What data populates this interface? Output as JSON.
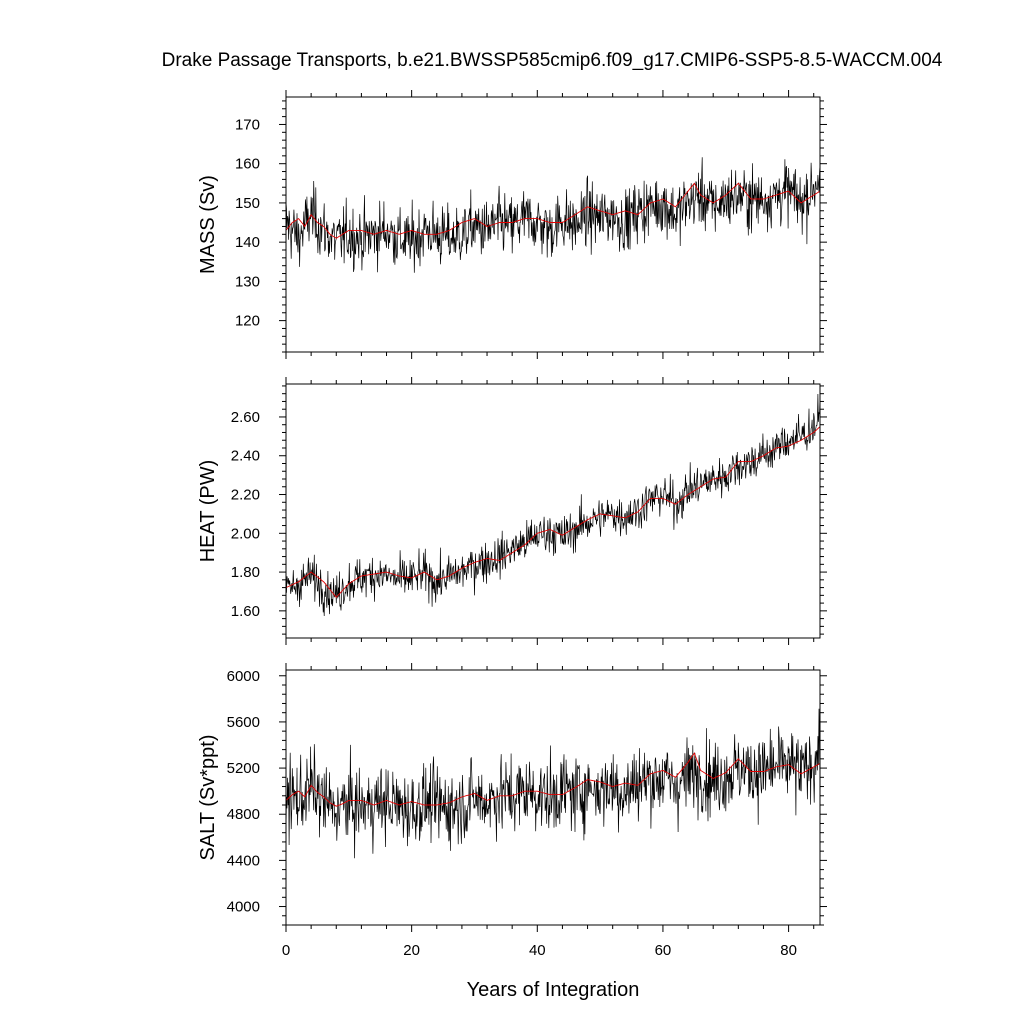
{
  "figure": {
    "title": "Drake Passage Transports, b.e21.BWSSP585cmip6.f09_g17.CMIP6-SSP5-8.5-WACCM.004",
    "xlabel": "Years of Integration"
  },
  "chart_data": [
    {
      "type": "line",
      "title": "",
      "ylabel": "MASS (Sv)",
      "xlabel": "",
      "xlim": [
        0,
        85
      ],
      "ylim": [
        112,
        177
      ],
      "yticks": [
        120,
        130,
        140,
        150,
        160,
        170
      ],
      "ytick_labels": [
        "120",
        "130",
        "140",
        "150",
        "160",
        "170"
      ],
      "xticks": [
        0,
        20,
        40,
        60,
        80
      ],
      "xtick_labels": [],
      "series": [
        {
          "color": "#000000",
          "kind": "monthly",
          "x": [
            0,
            2,
            4,
            6,
            8,
            10,
            12,
            14,
            16,
            18,
            20,
            22,
            24,
            26,
            28,
            30,
            32,
            34,
            36,
            38,
            40,
            42,
            44,
            46,
            48,
            50,
            52,
            54,
            56,
            58,
            60,
            62,
            64,
            66,
            68,
            70,
            72,
            74,
            76,
            78,
            80,
            82,
            84,
            85
          ],
          "values": [
            145,
            141,
            147,
            143,
            140,
            142,
            141,
            142,
            143,
            141,
            140,
            143,
            142,
            141,
            142,
            144,
            143,
            145,
            144,
            146,
            145,
            143,
            146,
            144,
            147,
            146,
            147,
            145,
            148,
            149,
            150,
            147,
            150,
            152,
            149,
            151,
            152,
            151,
            151,
            152,
            153,
            150,
            154,
            158
          ]
        },
        {
          "color": "#e00000",
          "kind": "running mean",
          "x": [
            0,
            1,
            2,
            3,
            4,
            5,
            6,
            7,
            8,
            9,
            10,
            12,
            14,
            16,
            18,
            20,
            22,
            24,
            26,
            28,
            30,
            32,
            34,
            36,
            38,
            40,
            42,
            44,
            46,
            48,
            50,
            52,
            54,
            56,
            58,
            60,
            62,
            64,
            65,
            66,
            68,
            70,
            72,
            74,
            76,
            78,
            80,
            82,
            84,
            85
          ],
          "values": [
            143,
            145,
            146,
            144,
            147,
            145,
            144,
            142,
            141,
            142,
            143,
            143,
            142,
            143,
            142,
            143,
            142,
            142,
            143,
            145,
            146,
            144,
            145,
            145,
            146,
            146,
            145,
            145,
            147,
            149,
            148,
            147,
            148,
            147,
            150,
            151,
            149,
            153,
            155,
            152,
            150,
            152,
            155,
            151,
            151,
            152,
            153,
            150,
            152,
            153
          ]
        }
      ]
    },
    {
      "type": "line",
      "title": "",
      "ylabel": "HEAT (PW)",
      "xlabel": "",
      "xlim": [
        0,
        85
      ],
      "ylim": [
        1.46,
        2.77
      ],
      "yticks": [
        1.6,
        1.8,
        2.0,
        2.2,
        2.4,
        2.6
      ],
      "ytick_labels": [
        "1.60",
        "1.80",
        "2.00",
        "2.20",
        "2.40",
        "2.60"
      ],
      "xticks": [
        0,
        20,
        40,
        60,
        80
      ],
      "xtick_labels": [],
      "series": [
        {
          "color": "#000000",
          "kind": "monthly",
          "x": [
            0,
            2,
            4,
            6,
            8,
            10,
            12,
            14,
            16,
            18,
            20,
            22,
            24,
            26,
            28,
            30,
            32,
            34,
            36,
            38,
            40,
            42,
            44,
            46,
            48,
            50,
            52,
            54,
            56,
            58,
            60,
            62,
            64,
            66,
            68,
            70,
            72,
            74,
            76,
            78,
            80,
            82,
            84,
            85
          ],
          "values": [
            1.7,
            1.74,
            1.78,
            1.72,
            1.68,
            1.75,
            1.77,
            1.79,
            1.78,
            1.76,
            1.77,
            1.79,
            1.75,
            1.78,
            1.8,
            1.84,
            1.86,
            1.88,
            1.92,
            1.95,
            1.99,
            2.01,
            1.98,
            2.02,
            2.06,
            2.08,
            2.1,
            2.09,
            2.12,
            2.17,
            2.2,
            2.15,
            2.22,
            2.25,
            2.28,
            2.3,
            2.35,
            2.37,
            2.4,
            2.44,
            2.48,
            2.5,
            2.55,
            2.6
          ]
        },
        {
          "color": "#e00000",
          "kind": "running mean",
          "x": [
            0,
            2,
            4,
            6,
            8,
            10,
            12,
            14,
            16,
            18,
            20,
            22,
            24,
            26,
            28,
            30,
            32,
            34,
            36,
            38,
            40,
            42,
            44,
            46,
            48,
            50,
            52,
            54,
            56,
            58,
            60,
            62,
            64,
            66,
            68,
            70,
            72,
            74,
            76,
            78,
            80,
            82,
            84,
            85
          ],
          "values": [
            1.72,
            1.75,
            1.8,
            1.75,
            1.67,
            1.74,
            1.78,
            1.79,
            1.8,
            1.78,
            1.77,
            1.8,
            1.76,
            1.78,
            1.82,
            1.85,
            1.87,
            1.86,
            1.9,
            1.94,
            2.0,
            2.02,
            1.99,
            2.03,
            2.07,
            2.1,
            2.09,
            2.08,
            2.11,
            2.18,
            2.18,
            2.15,
            2.2,
            2.24,
            2.28,
            2.29,
            2.37,
            2.37,
            2.4,
            2.44,
            2.45,
            2.48,
            2.52,
            2.55
          ]
        }
      ]
    },
    {
      "type": "line",
      "title": "",
      "ylabel": "SALT (Sv*ppt)",
      "xlabel": "Years of Integration",
      "xlim": [
        0,
        85
      ],
      "ylim": [
        3840,
        6050
      ],
      "yticks": [
        4000,
        4400,
        4800,
        5200,
        5600,
        6000
      ],
      "ytick_labels": [
        "4000",
        "4400",
        "4800",
        "5200",
        "5600",
        "6000"
      ],
      "xticks": [
        0,
        20,
        40,
        60,
        80
      ],
      "xtick_labels": [
        "0",
        "20",
        "40",
        "60",
        "80"
      ],
      "series": [
        {
          "color": "#000000",
          "kind": "monthly",
          "x": [
            0,
            2,
            4,
            6,
            8,
            10,
            12,
            14,
            16,
            18,
            20,
            22,
            24,
            26,
            28,
            30,
            32,
            34,
            36,
            38,
            40,
            42,
            44,
            46,
            48,
            50,
            52,
            54,
            56,
            58,
            60,
            62,
            64,
            66,
            68,
            70,
            72,
            74,
            76,
            78,
            80,
            82,
            84,
            85
          ],
          "values": [
            4980,
            4920,
            5040,
            4900,
            4840,
            4880,
            4860,
            4890,
            4900,
            4870,
            4840,
            4900,
            4880,
            4860,
            4880,
            4940,
            4910,
            4980,
            4950,
            5000,
            4980,
            4930,
            5010,
            4970,
            5040,
            5010,
            5050,
            4990,
            5080,
            5100,
            5120,
            5050,
            5130,
            5170,
            5100,
            5150,
            5190,
            5170,
            5170,
            5200,
            5230,
            5150,
            5260,
            5380
          ]
        },
        {
          "color": "#e00000",
          "kind": "running mean",
          "x": [
            0,
            1,
            2,
            3,
            4,
            5,
            6,
            7,
            8,
            9,
            10,
            12,
            14,
            16,
            18,
            20,
            22,
            24,
            26,
            28,
            30,
            32,
            34,
            36,
            38,
            40,
            42,
            44,
            46,
            48,
            50,
            52,
            54,
            56,
            58,
            60,
            62,
            64,
            65,
            66,
            68,
            70,
            72,
            74,
            76,
            78,
            80,
            82,
            84,
            85
          ],
          "values": [
            4920,
            4970,
            5000,
            4950,
            5050,
            4990,
            4950,
            4900,
            4870,
            4890,
            4920,
            4920,
            4880,
            4920,
            4880,
            4910,
            4880,
            4880,
            4900,
            4950,
            4980,
            4920,
            4960,
            4960,
            5000,
            5000,
            4970,
            4970,
            5030,
            5100,
            5080,
            5040,
            5070,
            5050,
            5150,
            5180,
            5120,
            5250,
            5330,
            5180,
            5110,
            5160,
            5280,
            5170,
            5170,
            5210,
            5230,
            5150,
            5210,
            5240
          ]
        }
      ]
    }
  ]
}
